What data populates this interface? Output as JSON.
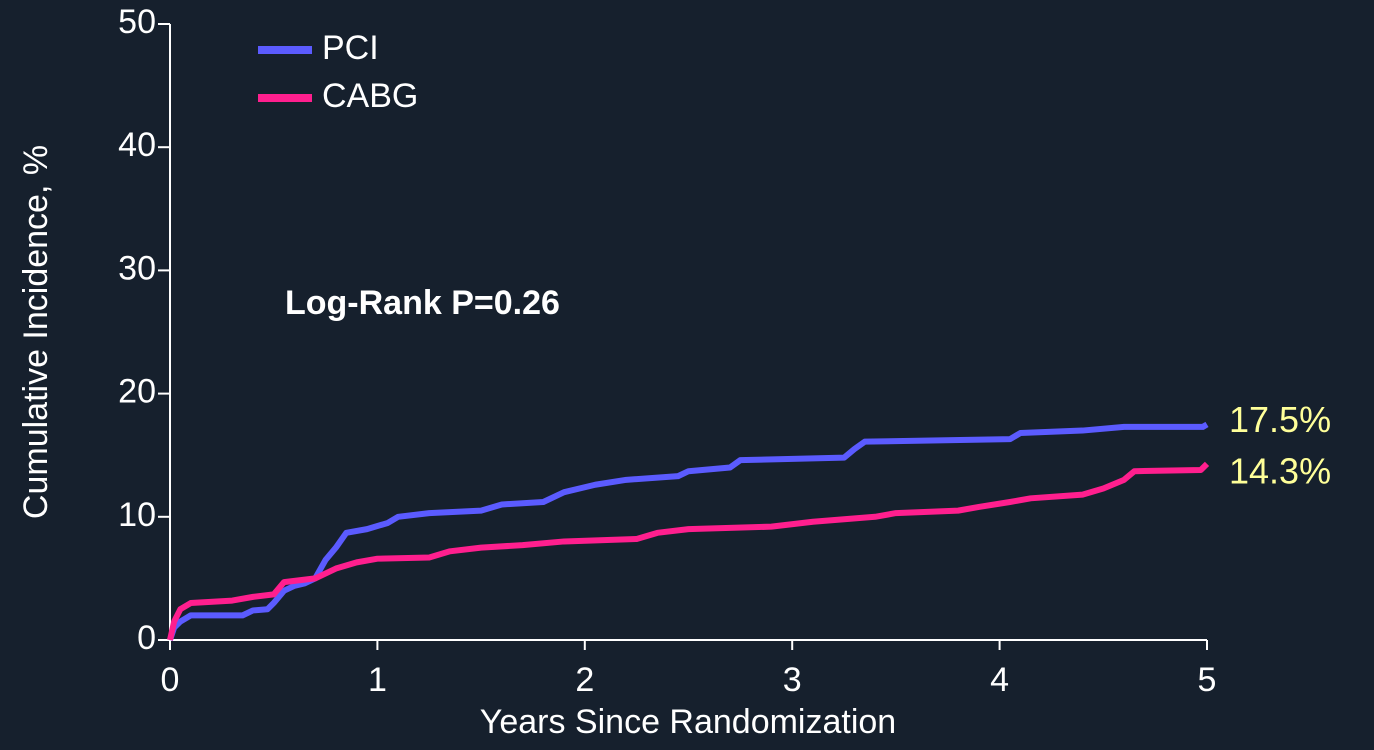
{
  "chart_data": {
    "type": "line",
    "x_label": "Years Since Randomization",
    "y_label": "Cumulative Incidence, %",
    "annotation": "Log-Rank P=0.26",
    "xlim": [
      0,
      5
    ],
    "xticks": [
      0,
      1,
      2,
      3,
      4,
      5
    ],
    "ylim": [
      0,
      50
    ],
    "yticks": [
      0,
      10,
      20,
      30,
      40,
      50
    ],
    "legend": "top-left",
    "series": [
      {
        "name": "PCI",
        "color": "#5b5bff",
        "end_label": "17.5%",
        "x": [
          0,
          0.02,
          0.05,
          0.1,
          0.35,
          0.4,
          0.47,
          0.5,
          0.55,
          0.6,
          0.65,
          0.7,
          0.75,
          0.8,
          0.85,
          0.95,
          1.05,
          1.1,
          1.25,
          1.5,
          1.6,
          1.8,
          1.9,
          2.05,
          2.2,
          2.45,
          2.5,
          2.7,
          2.75,
          3.25,
          3.3,
          3.35,
          4.05,
          4.1,
          4.4,
          4.6,
          4.98,
          5
        ],
        "values": [
          0,
          1,
          1.5,
          2,
          2,
          2.4,
          2.5,
          3,
          4,
          4.4,
          4.6,
          5,
          6.5,
          7.5,
          8.7,
          9,
          9.5,
          10,
          10.3,
          10.5,
          11,
          11.2,
          12,
          12.6,
          13,
          13.3,
          13.7,
          14,
          14.6,
          14.8,
          15.5,
          16.1,
          16.3,
          16.8,
          17,
          17.3,
          17.3,
          17.5
        ]
      },
      {
        "name": "CABG",
        "color": "#ff1f8e",
        "end_label": "14.3%",
        "x": [
          0,
          0.02,
          0.05,
          0.1,
          0.3,
          0.4,
          0.5,
          0.55,
          0.7,
          0.8,
          0.9,
          1,
          1.25,
          1.35,
          1.5,
          1.7,
          1.9,
          2.25,
          2.35,
          2.5,
          2.9,
          3.1,
          3.4,
          3.5,
          3.8,
          3.9,
          4.05,
          4.15,
          4.4,
          4.5,
          4.6,
          4.65,
          4.97,
          5
        ],
        "values": [
          0,
          1.5,
          2.5,
          3,
          3.2,
          3.5,
          3.7,
          4.7,
          5,
          5.8,
          6.3,
          6.6,
          6.7,
          7.2,
          7.5,
          7.7,
          8,
          8.2,
          8.7,
          9,
          9.2,
          9.6,
          10,
          10.3,
          10.5,
          10.8,
          11.2,
          11.5,
          11.8,
          12.3,
          13,
          13.7,
          13.8,
          14.3
        ]
      }
    ]
  }
}
